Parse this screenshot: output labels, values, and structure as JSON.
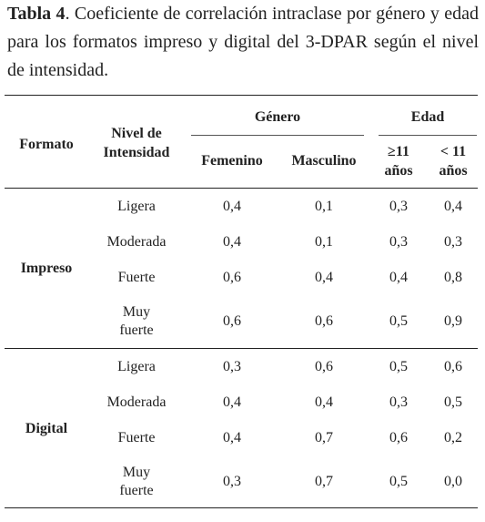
{
  "caption": {
    "label": "Tabla 4",
    "text": ". Coeficiente de correlación intraclase por género y edad para los formatos impreso y digital del 3-DPAR según el nivel de intensidad."
  },
  "table": {
    "headers": {
      "formato": "Formato",
      "nivel_line1": "Nivel de",
      "nivel_line2": "Intensidad",
      "genero": "Género",
      "edad": "Edad",
      "femenino": "Femenino",
      "masculino": "Masculino",
      "age_ge11_line1": "≥11",
      "age_ge11_line2": "años",
      "age_lt11_line1": "< 11",
      "age_lt11_line2": "años"
    },
    "groups": [
      {
        "formato": "Impreso",
        "rows": [
          {
            "nivel": [
              "Ligera"
            ],
            "femenino": "0,4",
            "masculino": "0,1",
            "ge11": "0,3",
            "lt11": "0,4"
          },
          {
            "nivel": [
              "Moderada"
            ],
            "femenino": "0,4",
            "masculino": "0,1",
            "ge11": "0,3",
            "lt11": "0,3"
          },
          {
            "nivel": [
              "Fuerte"
            ],
            "femenino": "0,6",
            "masculino": "0,4",
            "ge11": "0,4",
            "lt11": "0,8"
          },
          {
            "nivel": [
              "Muy",
              "fuerte"
            ],
            "femenino": "0,6",
            "masculino": "0,6",
            "ge11": "0,5",
            "lt11": "0,9"
          }
        ]
      },
      {
        "formato": "Digital",
        "rows": [
          {
            "nivel": [
              "Ligera"
            ],
            "femenino": "0,3",
            "masculino": "0,6",
            "ge11": "0,5",
            "lt11": "0,6"
          },
          {
            "nivel": [
              "Moderada"
            ],
            "femenino": "0,4",
            "masculino": "0,4",
            "ge11": "0,3",
            "lt11": "0,5"
          },
          {
            "nivel": [
              "Fuerte"
            ],
            "femenino": "0,4",
            "masculino": "0,7",
            "ge11": "0,6",
            "lt11": "0,2"
          },
          {
            "nivel": [
              "Muy",
              "fuerte"
            ],
            "femenino": "0,3",
            "masculino": "0,7",
            "ge11": "0,5",
            "lt11": "0,0"
          }
        ]
      }
    ]
  }
}
